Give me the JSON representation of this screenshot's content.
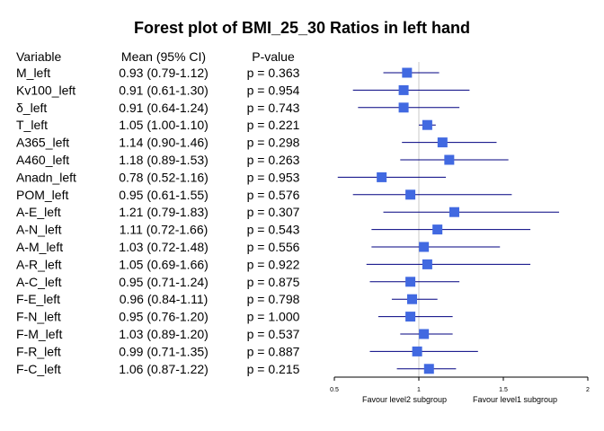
{
  "chart_data": {
    "type": "forest",
    "title": "Forest plot of BMI_25_30 Ratios in left hand",
    "columns": [
      "Variable",
      "Mean (95% CI)",
      "P-value"
    ],
    "rows": [
      {
        "variable": "M_left",
        "ci_text": "0.93 (0.79-1.12)",
        "p_text": "p = 0.363",
        "mean": 0.93,
        "lower": 0.79,
        "upper": 1.12
      },
      {
        "variable": "Kv100_left",
        "ci_text": "0.91 (0.61-1.30)",
        "p_text": "p = 0.954",
        "mean": 0.91,
        "lower": 0.61,
        "upper": 1.3
      },
      {
        "variable": "δ_left",
        "ci_text": "0.91 (0.64-1.24)",
        "p_text": "p = 0.743",
        "mean": 0.91,
        "lower": 0.64,
        "upper": 1.24
      },
      {
        "variable": "T_left",
        "ci_text": "1.05 (1.00-1.10)",
        "p_text": "p = 0.221",
        "mean": 1.05,
        "lower": 1.0,
        "upper": 1.1
      },
      {
        "variable": "A365_left",
        "ci_text": "1.14 (0.90-1.46)",
        "p_text": "p = 0.298",
        "mean": 1.14,
        "lower": 0.9,
        "upper": 1.46
      },
      {
        "variable": "A460_left",
        "ci_text": "1.18 (0.89-1.53)",
        "p_text": "p = 0.263",
        "mean": 1.18,
        "lower": 0.89,
        "upper": 1.53
      },
      {
        "variable": "Anadn_left",
        "ci_text": "0.78 (0.52-1.16)",
        "p_text": "p = 0.953",
        "mean": 0.78,
        "lower": 0.52,
        "upper": 1.16
      },
      {
        "variable": "POM_left",
        "ci_text": "0.95 (0.61-1.55)",
        "p_text": "p = 0.576",
        "mean": 0.95,
        "lower": 0.61,
        "upper": 1.55
      },
      {
        "variable": "A-E_left",
        "ci_text": "1.21 (0.79-1.83)",
        "p_text": "p = 0.307",
        "mean": 1.21,
        "lower": 0.79,
        "upper": 1.83
      },
      {
        "variable": "A-N_left",
        "ci_text": "1.11 (0.72-1.66)",
        "p_text": "p = 0.543",
        "mean": 1.11,
        "lower": 0.72,
        "upper": 1.66
      },
      {
        "variable": "A-M_left",
        "ci_text": "1.03 (0.72-1.48)",
        "p_text": "p = 0.556",
        "mean": 1.03,
        "lower": 0.72,
        "upper": 1.48
      },
      {
        "variable": "A-R_left",
        "ci_text": "1.05 (0.69-1.66)",
        "p_text": "p = 0.922",
        "mean": 1.05,
        "lower": 0.69,
        "upper": 1.66
      },
      {
        "variable": "A-C_left",
        "ci_text": "0.95 (0.71-1.24)",
        "p_text": "p = 0.875",
        "mean": 0.95,
        "lower": 0.71,
        "upper": 1.24
      },
      {
        "variable": "F-E_left",
        "ci_text": "0.96 (0.84-1.11)",
        "p_text": "p = 0.798",
        "mean": 0.96,
        "lower": 0.84,
        "upper": 1.11
      },
      {
        "variable": "F-N_left",
        "ci_text": "0.95 (0.76-1.20)",
        "p_text": "p = 1.000",
        "mean": 0.95,
        "lower": 0.76,
        "upper": 1.2
      },
      {
        "variable": "F-M_left",
        "ci_text": "1.03 (0.89-1.20)",
        "p_text": "p = 0.537",
        "mean": 1.03,
        "lower": 0.89,
        "upper": 1.2
      },
      {
        "variable": "F-R_left",
        "ci_text": "0.99 (0.71-1.35)",
        "p_text": "p = 0.887",
        "mean": 0.99,
        "lower": 0.71,
        "upper": 1.35
      },
      {
        "variable": "F-C_left",
        "ci_text": "1.06 (0.87-1.22)",
        "p_text": "p = 0.215",
        "mean": 1.06,
        "lower": 0.87,
        "upper": 1.22
      }
    ],
    "x_axis": {
      "range": [
        0.5,
        2
      ],
      "ticks": [
        "0.5",
        "1",
        "1.5",
        "2"
      ],
      "reference_line": 1
    },
    "favour_left_label": "Favour level2 subgroup",
    "favour_right_label": "Favour level1 subgroup",
    "grid": false,
    "colors": {
      "line": "#000080",
      "box": "#4169E1",
      "reference": "#c8c8c8"
    }
  }
}
